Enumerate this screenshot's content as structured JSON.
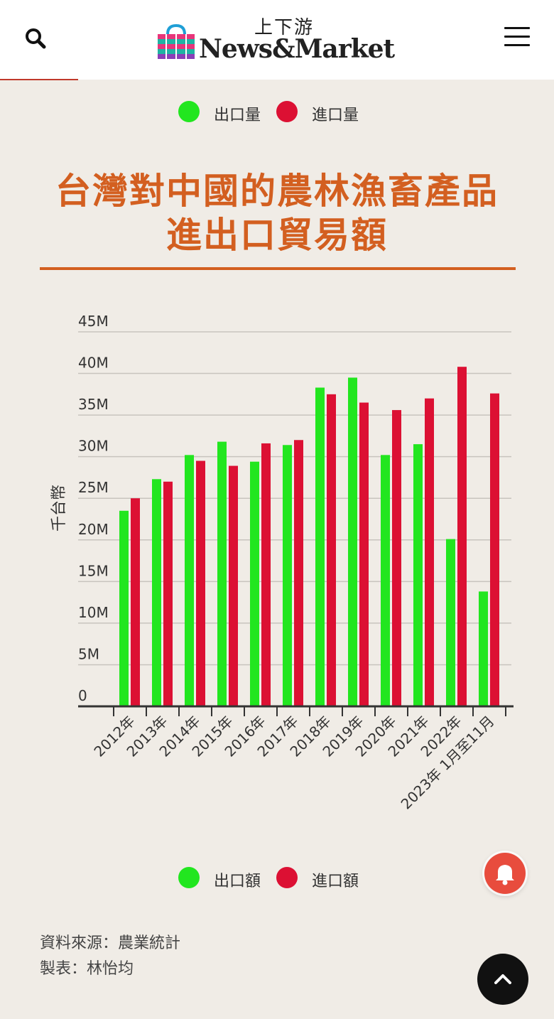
{
  "header": {
    "logo_cn": "上下游",
    "logo_en": "News&Market",
    "search_icon": "search-icon",
    "menu_icon": "hamburger-menu-icon"
  },
  "top_legend": {
    "export_label": "出口量",
    "import_label": "進口量"
  },
  "title_line1": "台灣對中國的農林漁畜產品",
  "title_line2": "進出口貿易額",
  "bottom_legend": {
    "export_label": "出口額",
    "import_label": "進口額"
  },
  "source": {
    "line1": "資料來源：農業統計",
    "line2": "製表：林怡均"
  },
  "colors": {
    "export": "#22e61f",
    "import": "#dc1033",
    "title": "#d35f20"
  },
  "chart_data": {
    "type": "bar",
    "ylabel": "千台幣",
    "xlabel": "",
    "ylim": [
      0,
      45
    ],
    "yticks": [
      "0",
      "5M",
      "10M",
      "15M",
      "20M",
      "25M",
      "30M",
      "35M",
      "40M",
      "45M"
    ],
    "categories": [
      "2012年",
      "2013年",
      "2014年",
      "2015年",
      "2016年",
      "2017年",
      "2018年",
      "2019年",
      "2020年",
      "2021年",
      "2022年",
      "2023年 1月至11月"
    ],
    "series": [
      {
        "name": "出口額",
        "values": [
          23.5,
          27.3,
          30.2,
          31.8,
          29.4,
          31.4,
          38.3,
          39.5,
          30.2,
          31.5,
          20.1,
          13.8
        ]
      },
      {
        "name": "進口額",
        "values": [
          25.0,
          27.0,
          29.5,
          28.9,
          31.6,
          32.0,
          37.5,
          36.5,
          35.6,
          37.0,
          40.8,
          37.6
        ]
      }
    ],
    "legend": "bottom",
    "grid": true
  }
}
